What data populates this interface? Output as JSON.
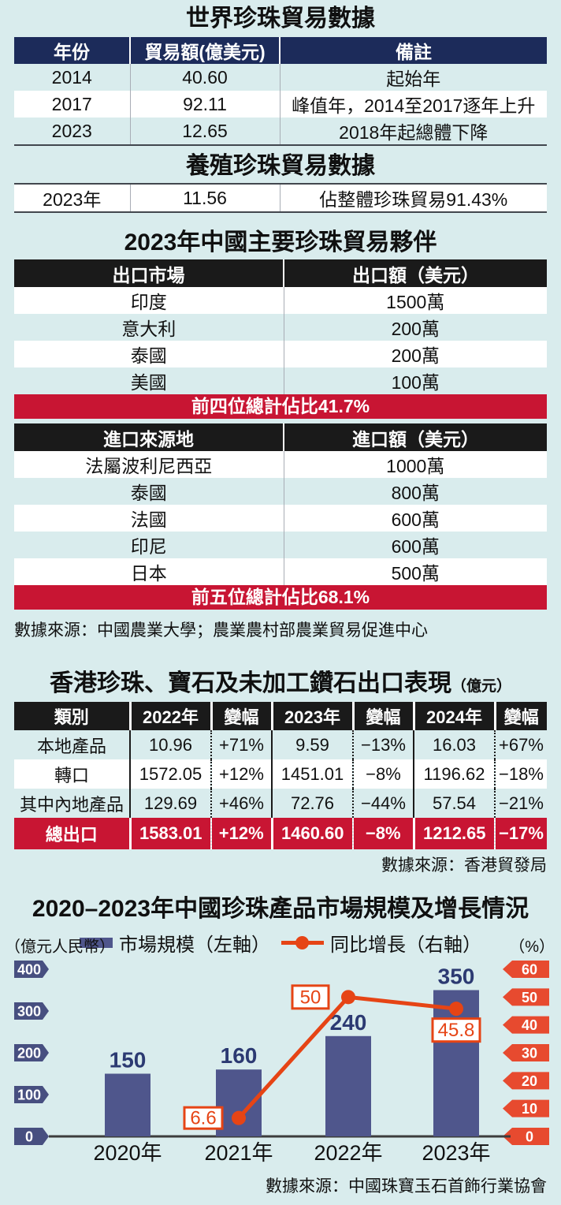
{
  "world": {
    "title": "世界珍珠貿易數據",
    "table": {
      "headers": [
        "年份",
        "貿易額(億美元)",
        "備註"
      ],
      "rows": [
        [
          "2014",
          "40.60",
          "起始年"
        ],
        [
          "2017",
          "92.11",
          "峰值年，2014至2017逐年上升"
        ],
        [
          "2023",
          "12.65",
          "2018年起總體下降"
        ]
      ]
    }
  },
  "cultured": {
    "title": "養殖珍珠貿易數據",
    "row": [
      "2023年",
      "11.56",
      "佔整體珍珠貿易91.43%"
    ]
  },
  "partners": {
    "title": "2023年中國主要珍珠貿易夥伴",
    "export": {
      "headers": [
        "出口市場",
        "出口額（美元）"
      ],
      "rows": [
        [
          "印度",
          "1500萬"
        ],
        [
          "意大利",
          "200萬"
        ],
        [
          "泰國",
          "200萬"
        ],
        [
          "美國",
          "100萬"
        ]
      ],
      "banner": "前四位總計佔比41.7%"
    },
    "import": {
      "headers": [
        "進口來源地",
        "進口額（美元）"
      ],
      "rows": [
        [
          "法屬波利尼西亞",
          "1000萬"
        ],
        [
          "泰國",
          "800萬"
        ],
        [
          "法國",
          "600萬"
        ],
        [
          "印尼",
          "600萬"
        ],
        [
          "日本",
          "500萬"
        ]
      ],
      "banner": "前五位總計佔比68.1%"
    },
    "source": "數據來源：中國農業大學；農業農村部農業貿易促進中心"
  },
  "hk": {
    "title": "香港珍珠、寶石及未加工鑽石出口表現",
    "unit": "（億元）",
    "table": {
      "headers": [
        "類別",
        "2022年",
        "變幅",
        "2023年",
        "變幅",
        "2024年",
        "變幅"
      ],
      "rows": [
        [
          "本地產品",
          "10.96",
          "+71%",
          "9.59",
          "−13%",
          "16.03",
          "+67%"
        ],
        [
          "轉口",
          "1572.05",
          "+12%",
          "1451.01",
          "−8%",
          "1196.62",
          "−18%"
        ],
        [
          "其中內地產品",
          "129.69",
          "+46%",
          "72.76",
          "−44%",
          "57.54",
          "−21%"
        ],
        [
          "總出口",
          "1583.01",
          "+12%",
          "1460.60",
          "−8%",
          "1212.65",
          "−17%"
        ]
      ]
    },
    "source": "數據來源：香港貿發局"
  },
  "chart": {
    "title": "2020–2023年中國珍珠產品市場規模及增長情況",
    "source": "數據來源：中國珠寶玉石首飾行業協會",
    "colors": {
      "bar": "#4f568c",
      "bar_label": "#2c3a72",
      "line": "#e64415",
      "left_tag": "#474f80",
      "right_tag": "#e74a2f",
      "table_red": "#c81533",
      "header_navy": "#1c2b5a",
      "background": "#d9eced"
    }
  },
  "chart_data": [
    {
      "type": "bar",
      "title": "2020–2023年中國珍珠產品市場規模及增長情況",
      "categories": [
        "2020年",
        "2021年",
        "2022年",
        "2023年"
      ],
      "series": [
        {
          "name": "市場規模（左軸）",
          "type": "bar",
          "axis": "left",
          "values": [
            150,
            160,
            240,
            350
          ]
        },
        {
          "name": "同比增長（右軸）",
          "type": "line",
          "axis": "right",
          "values": [
            null,
            6.6,
            50,
            45.8
          ]
        }
      ],
      "left_axis": {
        "label": "（億元人民幣）",
        "ticks": [
          400,
          300,
          200,
          100,
          0
        ],
        "range": [
          0,
          400
        ]
      },
      "right_axis": {
        "label": "（%）",
        "ticks": [
          60,
          50,
          40,
          30,
          20,
          10,
          0
        ],
        "range": [
          0,
          60
        ]
      },
      "point_labels": [
        "6.6",
        "50",
        "45.8"
      ],
      "legend_position": "top",
      "grid": false
    },
    {
      "type": "table",
      "title": "世界珍珠貿易數據",
      "columns": [
        "年份",
        "貿易額(億美元)",
        "備註"
      ],
      "rows": [
        [
          "2014",
          40.6,
          "起始年"
        ],
        [
          "2017",
          92.11,
          "峰值年，2014至2017逐年上升"
        ],
        [
          "2023",
          12.65,
          "2018年起總體下降"
        ],
        [
          "2023年(養殖)",
          11.56,
          "佔整體珍珠貿易91.43%"
        ]
      ]
    },
    {
      "type": "table",
      "title": "2023年中國主要珍珠貿易夥伴",
      "rows": [
        [
          "出口-印度",
          "1500萬"
        ],
        [
          "出口-意大利",
          "200萬"
        ],
        [
          "出口-泰國",
          "200萬"
        ],
        [
          "出口-美國",
          "100萬"
        ],
        [
          "前四位總計佔比",
          "41.7%"
        ],
        [
          "進口-法屬波利尼西亞",
          "1000萬"
        ],
        [
          "進口-泰國",
          "800萬"
        ],
        [
          "進口-法國",
          "600萬"
        ],
        [
          "進口-印尼",
          "600萬"
        ],
        [
          "進口-日本",
          "500萬"
        ],
        [
          "前五位總計佔比",
          "68.1%"
        ]
      ]
    },
    {
      "type": "table",
      "title": "香港珍珠、寶石及未加工鑽石出口表現（億元）",
      "columns": [
        "類別",
        "2022年",
        "變幅",
        "2023年",
        "變幅",
        "2024年",
        "變幅"
      ],
      "rows": [
        [
          "本地產品",
          10.96,
          "+71%",
          9.59,
          "−13%",
          16.03,
          "+67%"
        ],
        [
          "轉口",
          1572.05,
          "+12%",
          1451.01,
          "−8%",
          1196.62,
          "−18%"
        ],
        [
          "其中內地產品",
          129.69,
          "+46%",
          72.76,
          "−44%",
          57.54,
          "−21%"
        ],
        [
          "總出口",
          1583.01,
          "+12%",
          1460.6,
          "−8%",
          1212.65,
          "−17%"
        ]
      ]
    }
  ]
}
